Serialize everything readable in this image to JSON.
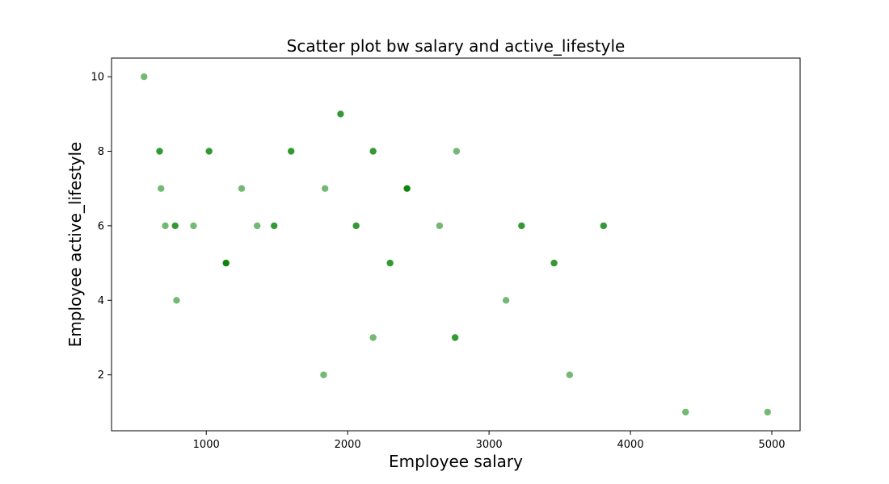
{
  "chart_data": {
    "type": "scatter",
    "title": "Scatter plot bw salary and active_lifestyle",
    "xlabel": "Employee salary",
    "ylabel": "Employee active_lifestyle",
    "xlim": [
      330,
      5200
    ],
    "ylim": [
      0.5,
      10.5
    ],
    "xticks": [
      1000,
      2000,
      3000,
      4000,
      5000
    ],
    "yticks": [
      2,
      4,
      6,
      8,
      10
    ],
    "grid": false,
    "marker_color": "#008000",
    "points": [
      {
        "x": 560,
        "y": 10,
        "alpha": 0.55
      },
      {
        "x": 670,
        "y": 8,
        "alpha": 0.8
      },
      {
        "x": 680,
        "y": 7,
        "alpha": 0.55
      },
      {
        "x": 710,
        "y": 6,
        "alpha": 0.55
      },
      {
        "x": 780,
        "y": 6,
        "alpha": 0.8
      },
      {
        "x": 790,
        "y": 4,
        "alpha": 0.55
      },
      {
        "x": 910,
        "y": 6,
        "alpha": 0.55
      },
      {
        "x": 1020,
        "y": 8,
        "alpha": 0.8
      },
      {
        "x": 1140,
        "y": 5,
        "alpha": 0.95
      },
      {
        "x": 1250,
        "y": 7,
        "alpha": 0.55
      },
      {
        "x": 1360,
        "y": 6,
        "alpha": 0.55
      },
      {
        "x": 1480,
        "y": 6,
        "alpha": 0.8
      },
      {
        "x": 1600,
        "y": 8,
        "alpha": 0.8
      },
      {
        "x": 1830,
        "y": 2,
        "alpha": 0.55
      },
      {
        "x": 1840,
        "y": 7,
        "alpha": 0.55
      },
      {
        "x": 1950,
        "y": 9,
        "alpha": 0.8
      },
      {
        "x": 2060,
        "y": 6,
        "alpha": 0.8
      },
      {
        "x": 2180,
        "y": 3,
        "alpha": 0.55
      },
      {
        "x": 2180,
        "y": 8,
        "alpha": 0.8
      },
      {
        "x": 2300,
        "y": 5,
        "alpha": 0.8
      },
      {
        "x": 2420,
        "y": 7,
        "alpha": 0.95
      },
      {
        "x": 2650,
        "y": 6,
        "alpha": 0.55
      },
      {
        "x": 2760,
        "y": 3,
        "alpha": 0.8
      },
      {
        "x": 2770,
        "y": 8,
        "alpha": 0.55
      },
      {
        "x": 3120,
        "y": 4,
        "alpha": 0.55
      },
      {
        "x": 3230,
        "y": 6,
        "alpha": 0.8
      },
      {
        "x": 3460,
        "y": 5,
        "alpha": 0.8
      },
      {
        "x": 3570,
        "y": 2,
        "alpha": 0.55
      },
      {
        "x": 3810,
        "y": 6,
        "alpha": 0.8
      },
      {
        "x": 4390,
        "y": 1,
        "alpha": 0.55
      },
      {
        "x": 4970,
        "y": 1,
        "alpha": 0.55
      }
    ]
  }
}
